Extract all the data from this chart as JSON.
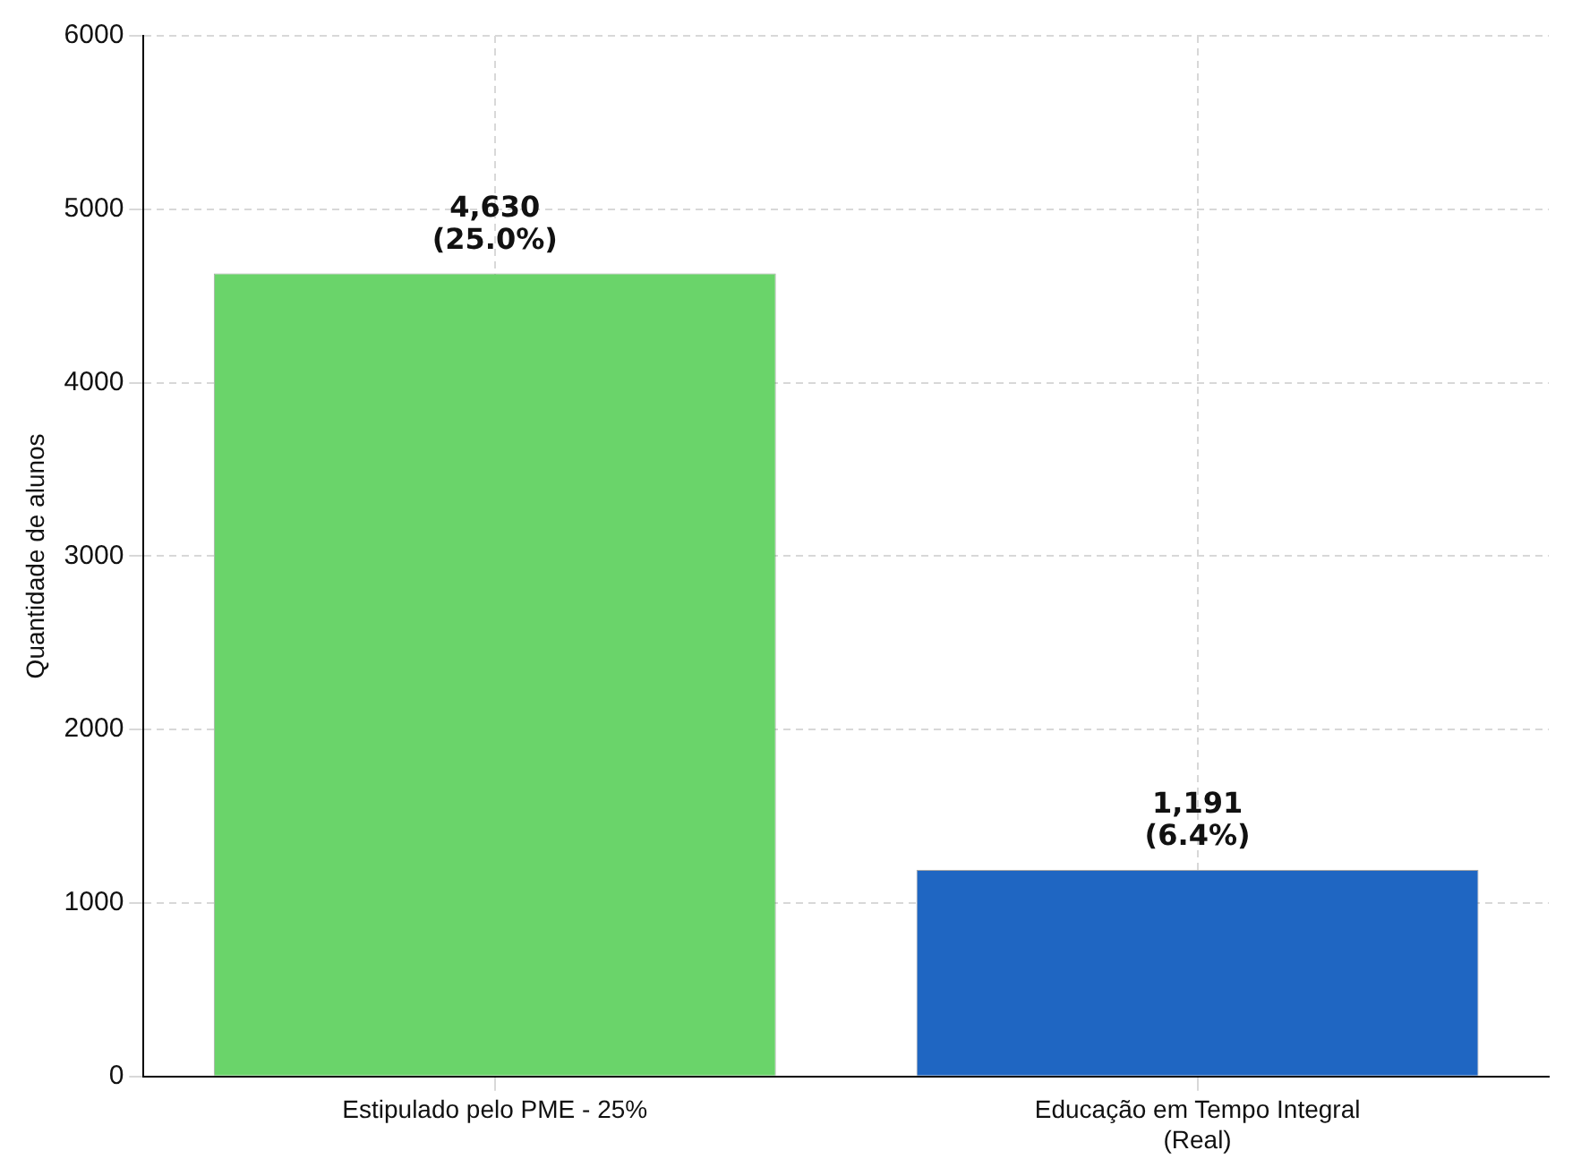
{
  "chart_data": {
    "type": "bar",
    "ylabel": "Quantidade de alunos",
    "categories": [
      "Estipulado pelo PME - 25%",
      "Educação em Tempo Integral\n(Real)"
    ],
    "values": [
      4630,
      1191
    ],
    "colors": [
      "#6ad46a",
      "#1f66c2"
    ],
    "value_labels": [
      "4,630\n(25.0%)",
      "1,191\n(6.4%)"
    ],
    "ylim": [
      0,
      6000
    ],
    "yticks": [
      0,
      1000,
      2000,
      3000,
      4000,
      5000,
      6000
    ],
    "grid": true
  }
}
